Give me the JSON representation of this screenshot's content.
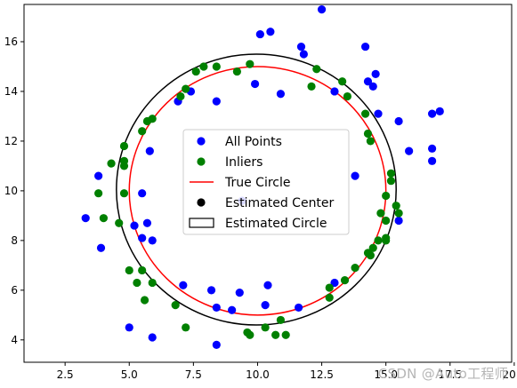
{
  "chart_data": {
    "type": "scatter",
    "title": "",
    "xlabel": "",
    "ylabel": "",
    "xlim": [
      0.9,
      19.9
    ],
    "ylim": [
      3.1,
      17.5
    ],
    "xticks": [
      2.5,
      5.0,
      7.5,
      10.0,
      12.5,
      15.0,
      17.5,
      20.0
    ],
    "xtick_labels": [
      "2.5",
      "5.0",
      "7.5",
      "10.0",
      "12.5",
      "15.0",
      "17.5",
      "20.0"
    ],
    "yticks": [
      4,
      6,
      8,
      10,
      12,
      14,
      16
    ],
    "ytick_labels": [
      "4",
      "6",
      "8",
      "10",
      "12",
      "14",
      "16"
    ],
    "grid": false,
    "legend_placement": "center",
    "series": [
      {
        "name": "All Points",
        "kind": "scatter",
        "color": "#0000ff",
        "points": [
          [
            12.5,
            17.3
          ],
          [
            10.5,
            16.4
          ],
          [
            10.1,
            16.3
          ],
          [
            11.7,
            15.8
          ],
          [
            11.8,
            15.5
          ],
          [
            14.2,
            15.8
          ],
          [
            14.6,
            14.7
          ],
          [
            14.3,
            14.4
          ],
          [
            14.5,
            14.2
          ],
          [
            13.0,
            14.0
          ],
          [
            9.9,
            14.3
          ],
          [
            10.9,
            13.9
          ],
          [
            7.4,
            14.0
          ],
          [
            6.9,
            13.6
          ],
          [
            8.4,
            13.6
          ],
          [
            14.7,
            13.1
          ],
          [
            15.5,
            12.8
          ],
          [
            16.8,
            13.1
          ],
          [
            17.1,
            13.2
          ],
          [
            15.9,
            11.6
          ],
          [
            16.8,
            11.7
          ],
          [
            16.8,
            11.2
          ],
          [
            5.8,
            11.6
          ],
          [
            3.8,
            10.6
          ],
          [
            5.5,
            9.9
          ],
          [
            13.8,
            10.6
          ],
          [
            9.4,
            9.6
          ],
          [
            3.3,
            8.9
          ],
          [
            5.7,
            8.7
          ],
          [
            5.2,
            8.6
          ],
          [
            5.5,
            8.1
          ],
          [
            5.9,
            8.0
          ],
          [
            3.9,
            7.7
          ],
          [
            15.5,
            8.8
          ],
          [
            7.1,
            6.2
          ],
          [
            8.2,
            6.0
          ],
          [
            9.3,
            5.9
          ],
          [
            10.4,
            6.2
          ],
          [
            8.4,
            5.3
          ],
          [
            9.0,
            5.2
          ],
          [
            10.3,
            5.4
          ],
          [
            11.6,
            5.3
          ],
          [
            13.0,
            6.3
          ],
          [
            5.0,
            4.5
          ],
          [
            5.9,
            4.1
          ],
          [
            8.4,
            3.8
          ]
        ]
      },
      {
        "name": "Inliers",
        "kind": "scatter",
        "color": "#008000",
        "points": [
          [
            7.6,
            14.8
          ],
          [
            7.9,
            15.0
          ],
          [
            8.4,
            15.0
          ],
          [
            9.2,
            14.8
          ],
          [
            9.7,
            15.1
          ],
          [
            12.3,
            14.9
          ],
          [
            13.3,
            14.4
          ],
          [
            13.5,
            13.8
          ],
          [
            7.2,
            14.1
          ],
          [
            7.0,
            13.8
          ],
          [
            5.9,
            12.9
          ],
          [
            5.7,
            12.8
          ],
          [
            12.1,
            14.2
          ],
          [
            14.2,
            13.1
          ],
          [
            14.3,
            12.3
          ],
          [
            14.4,
            12.0
          ],
          [
            5.5,
            12.4
          ],
          [
            4.8,
            11.8
          ],
          [
            4.3,
            11.1
          ],
          [
            4.8,
            11.0
          ],
          [
            4.8,
            11.2
          ],
          [
            3.8,
            9.9
          ],
          [
            4.8,
            9.9
          ],
          [
            15.2,
            10.7
          ],
          [
            15.2,
            10.4
          ],
          [
            15.0,
            9.8
          ],
          [
            15.4,
            9.4
          ],
          [
            15.5,
            9.1
          ],
          [
            4.0,
            8.9
          ],
          [
            4.6,
            8.7
          ],
          [
            14.8,
            9.1
          ],
          [
            15.0,
            8.8
          ],
          [
            14.7,
            8.0
          ],
          [
            15.0,
            8.1
          ],
          [
            15.0,
            8.0
          ],
          [
            14.5,
            7.7
          ],
          [
            14.3,
            7.5
          ],
          [
            14.4,
            7.4
          ],
          [
            13.8,
            6.9
          ],
          [
            5.0,
            6.8
          ],
          [
            5.5,
            6.8
          ],
          [
            5.3,
            6.3
          ],
          [
            5.9,
            6.3
          ],
          [
            13.4,
            6.4
          ],
          [
            12.8,
            6.1
          ],
          [
            12.8,
            5.7
          ],
          [
            5.6,
            5.6
          ],
          [
            6.8,
            5.4
          ],
          [
            10.9,
            4.8
          ],
          [
            7.2,
            4.5
          ],
          [
            9.6,
            4.3
          ],
          [
            9.7,
            4.2
          ],
          [
            10.3,
            4.5
          ],
          [
            10.7,
            4.2
          ],
          [
            11.1,
            4.2
          ]
        ]
      },
      {
        "name": "True Circle",
        "kind": "circle",
        "color": "#ff0000",
        "center": [
          10.0,
          10.0
        ],
        "radius": 5.0
      },
      {
        "name": "Estimated Center",
        "kind": "point",
        "color": "#000000",
        "points": []
      },
      {
        "name": "Estimated Circle",
        "kind": "circle",
        "color": "#000000",
        "center": [
          9.95,
          10.05
        ],
        "radius": 5.45
      }
    ]
  },
  "watermark": "CSDN @Auto工程师"
}
